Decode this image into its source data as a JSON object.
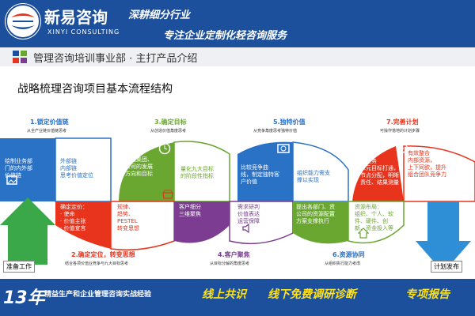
{
  "header": {
    "brand_name": "新易咨询",
    "brand_en": "XINYI CONSULTING",
    "slogan_line1": "深耕细分行业",
    "slogan_line2": "专注企业定制化轻咨询服务",
    "colors": {
      "primary": "#1c4f9c",
      "accent": "#ffe21a"
    }
  },
  "subtitle_bar": {
    "text": "管理咨询培训事业部 · 主打产品介绍",
    "icon": "grid-icon"
  },
  "diagram": {
    "title": "战略梳理咨询项目基本流程结构",
    "steps": [
      {
        "title": "1.锁定价值链",
        "subtitle": "从全产业链价值链思考",
        "color": "#2a72c5",
        "blocks": [
          "绘制业务部\n门的内外部\n价值链",
          "外部链\n内部链\n思考价值定位"
        ],
        "icon": "image-icon"
      },
      {
        "title": "2.确定定位，转变思想",
        "subtitle": "结合各项价值业竞争与九大目标思考",
        "color": "#e8341c",
        "blocks": [
          "确定定价：\n· 使命\n· 价值主张\n· 价值宣言",
          "规律、\n趋势、\nPESTEL\n转变思想"
        ],
        "icon": "store-icon"
      },
      {
        "title": "3.确定目标",
        "subtitle": "从创造价值角度思考",
        "color": "#6aa730",
        "blocks": [
          "对透集团、\n公司的发展\n方向和目标",
          "量化九大目标\n的阶段性指标"
        ],
        "icon": "clock-icon"
      },
      {
        "title": "4.客户聚焦",
        "subtitle": "从目标分解的角度思考",
        "color": "#7b3c92",
        "blocks": [
          "客户细分\n三维聚焦",
          "需求研判\n价值表达\n运营保障"
        ],
        "icon": "speaker-icon"
      },
      {
        "title": "5.独特价值",
        "subtitle": "从竞争角度思考独特价值",
        "color": "#2a72c5",
        "blocks": [
          "比较竞争曲\n线，制定独特客\n户价值",
          "组织能力需支\n撑以实现"
        ],
        "icon": "camera-icon"
      },
      {
        "title": "6.资源协同",
        "subtitle": "从组织执行能力考虑",
        "color": "#6aa730",
        "blocks": [
          "提出各部门、资\n公司的资源配置\n方案支撑执行",
          "资源布局：\n组织、个人、软\n件、硬件、创\n新、资金投入等"
        ],
        "icon": "home-icon"
      },
      {
        "title": "7.完善计划",
        "subtitle": "可操作落地的计划步骤",
        "color": "#e8341c",
        "blocks": [
          "总业务\n单元目标打通，\n节点分配，明晰\n责任、结果测量",
          "有效整合\n内部资源，\n上下同欲，提升\n组合团队竞争力"
        ],
        "icon": "stopwatch-icon"
      }
    ],
    "left_label": "准备工作",
    "right_label": "计划发布"
  },
  "bottom_bar": {
    "years": "13年",
    "experience": "精益生产和企业管理咨询实战经验",
    "items": [
      "线上共识",
      "线下免费调研诊断",
      "专项报告"
    ]
  }
}
